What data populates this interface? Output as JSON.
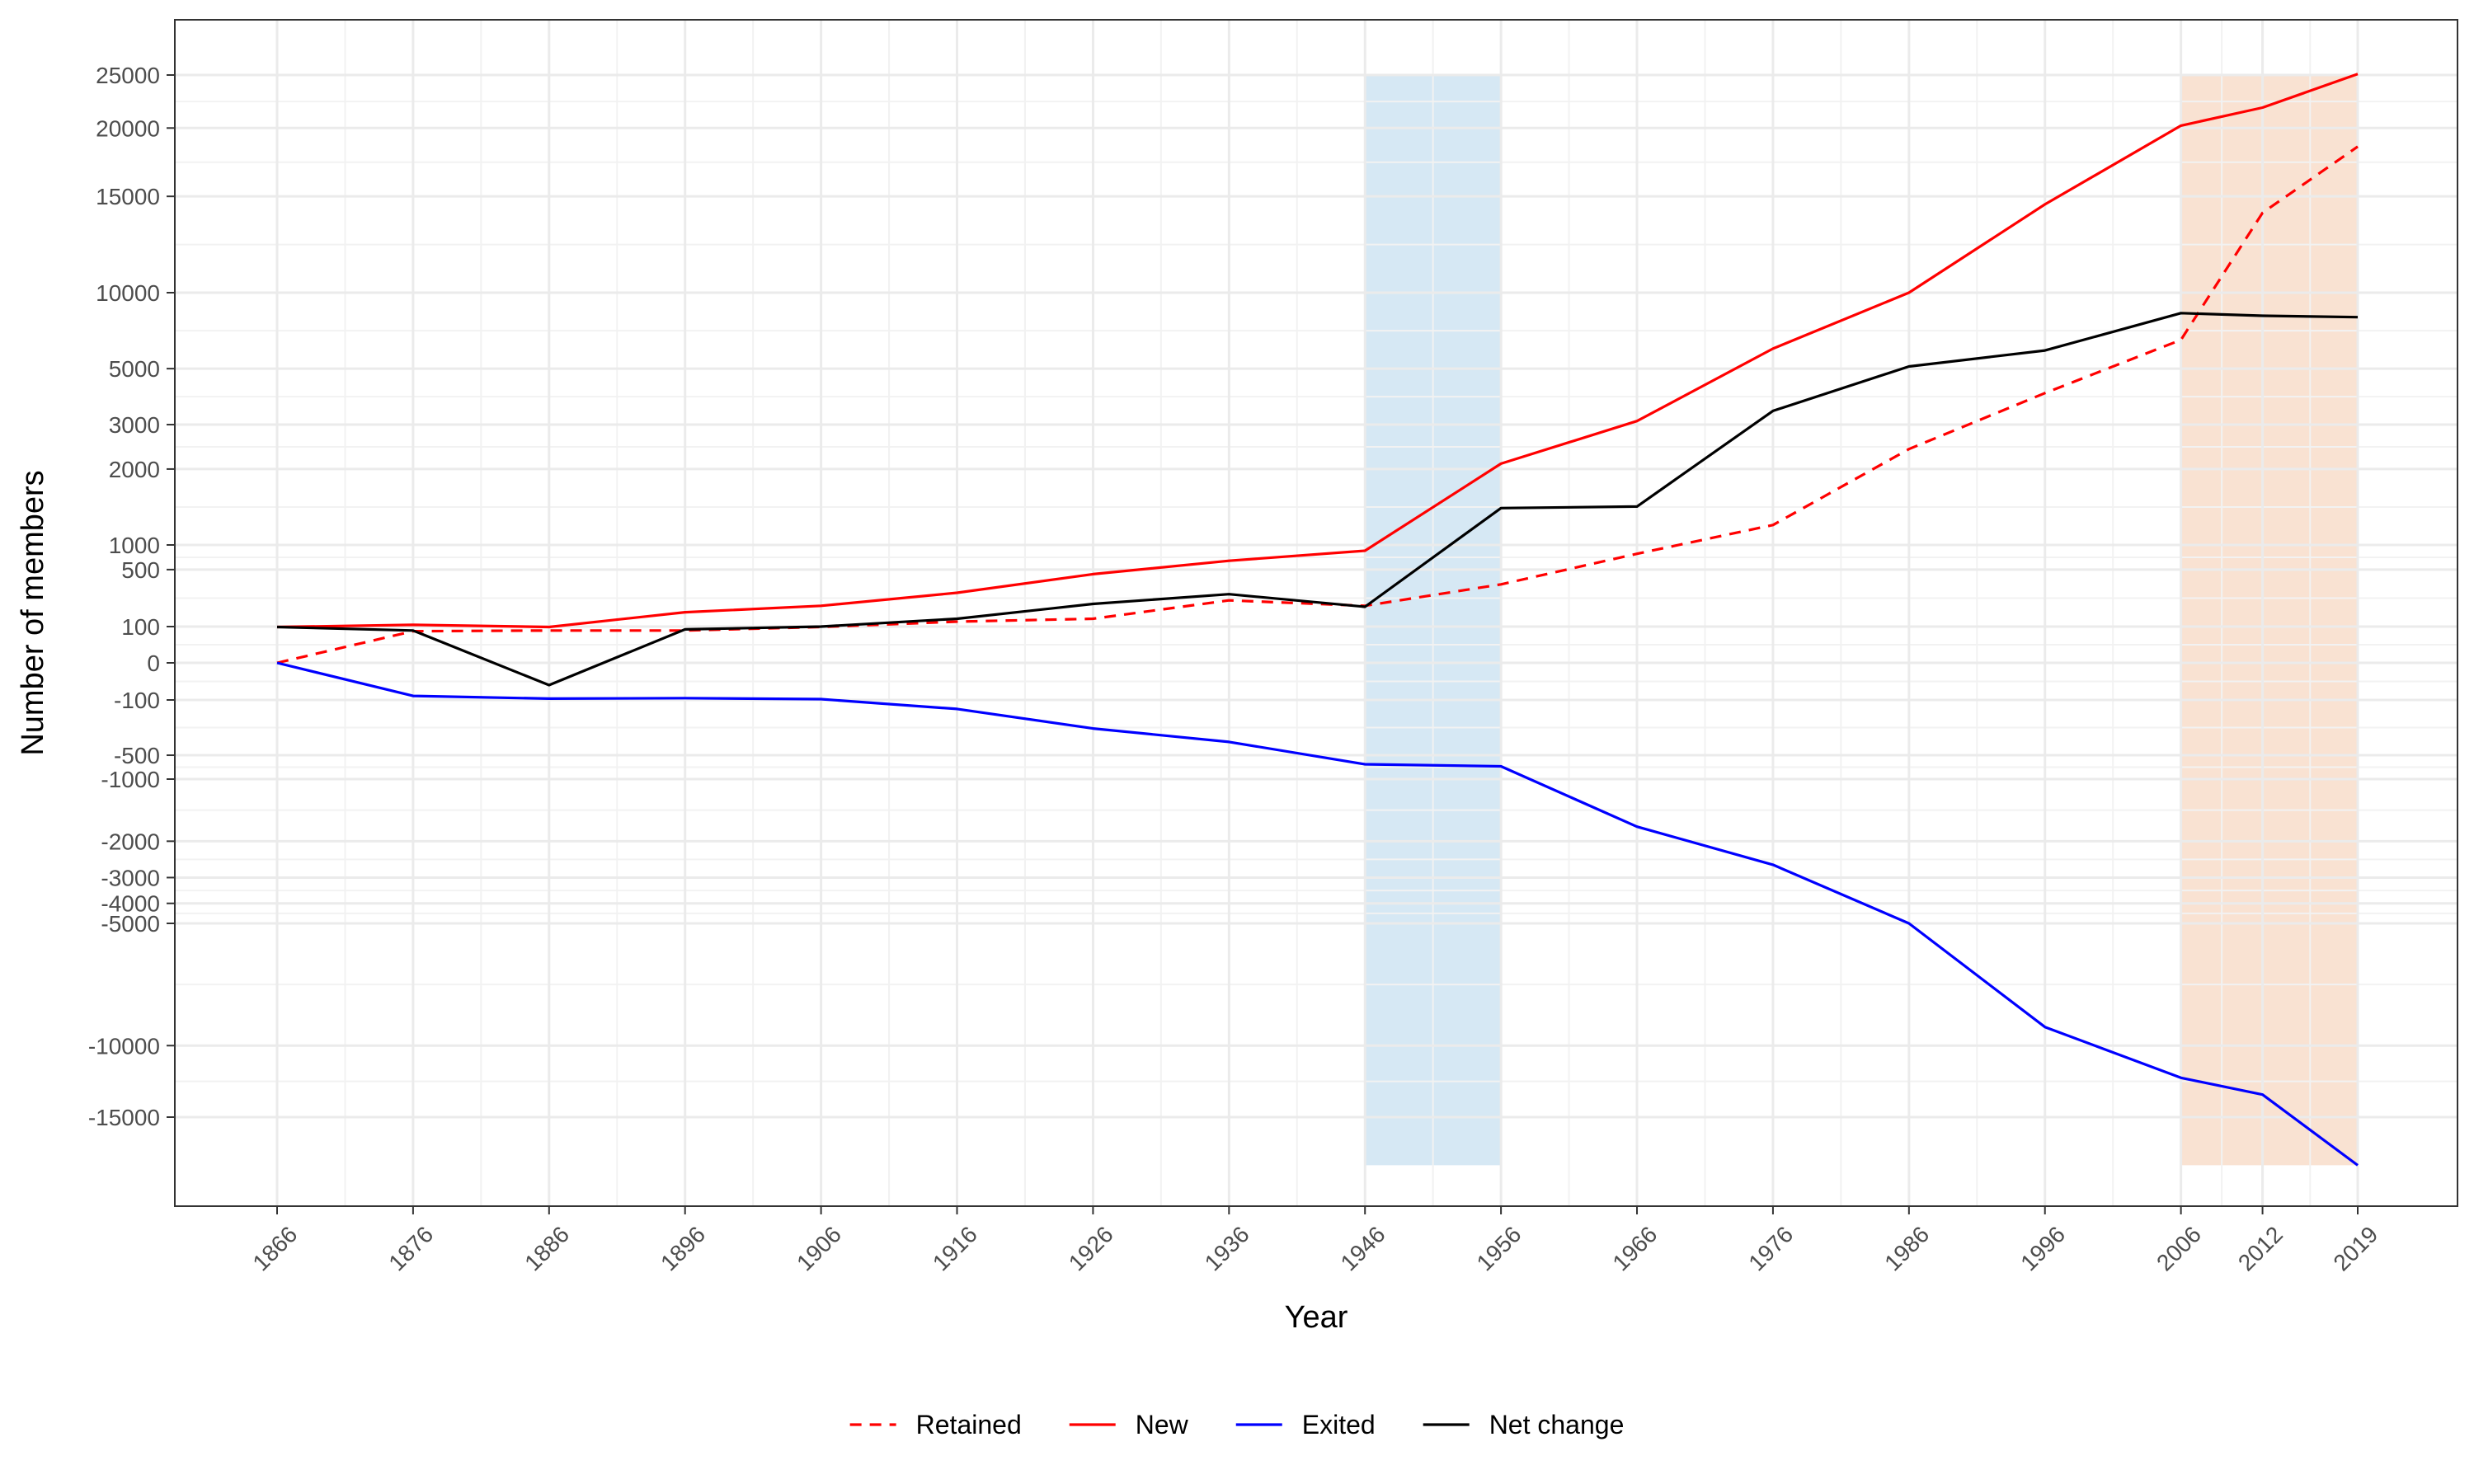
{
  "chart_data": {
    "type": "line",
    "title": "",
    "xlabel": "Year",
    "ylabel": "Number of members",
    "y_scale": "pseudo-log (signed, symmetric)",
    "x_ticks": [
      1866,
      1876,
      1886,
      1896,
      1906,
      1916,
      1926,
      1936,
      1946,
      1956,
      1966,
      1976,
      1986,
      1996,
      2006,
      2012,
      2019
    ],
    "y_ticks": [
      25000,
      20000,
      15000,
      10000,
      5000,
      3000,
      2000,
      1000,
      500,
      100,
      0,
      -100,
      -500,
      -1000,
      -2000,
      -3000,
      -4000,
      -5000,
      -10000,
      -15000
    ],
    "y_ticks_labels": [
      "25000",
      "20000",
      "15000",
      "10000",
      "5000",
      "3000",
      "2000",
      "1000",
      "500",
      "100",
      "0",
      "-100",
      "-500",
      "-1000",
      "-2000",
      "-3000",
      "-4000",
      "-5000",
      "-10000",
      "-15000"
    ],
    "x_ticks_labels": [
      "1866",
      "1876",
      "1886",
      "1896",
      "1906",
      "1916",
      "1926",
      "1936",
      "1946",
      "1956",
      "1966",
      "1976",
      "1986",
      "1996",
      "2006",
      "2012",
      "2019"
    ],
    "x": [
      1866,
      1876,
      1886,
      1896,
      1906,
      1916,
      1926,
      1936,
      1946,
      1956,
      1966,
      1976,
      1986,
      1996,
      2006,
      2012,
      2019
    ],
    "series": [
      {
        "name": "Retained",
        "color": "#ff0000",
        "dash": "dashed",
        "values": [
          0,
          55,
          60,
          60,
          95,
          115,
          125,
          210,
          180,
          330,
          780,
          1200,
          2400,
          4000,
          6500,
          14000,
          18500
        ]
      },
      {
        "name": "New",
        "color": "#ff0000",
        "dash": "solid",
        "values": [
          95,
          105,
          95,
          150,
          180,
          260,
          440,
          640,
          850,
          2100,
          3100,
          6000,
          10000,
          14500,
          20200,
          21800,
          25100
        ]
      },
      {
        "name": "Exited",
        "color": "#0000ff",
        "dash": "solid",
        "values": [
          0,
          -60,
          -85,
          -80,
          -90,
          -130,
          -230,
          -340,
          -650,
          -690,
          -1700,
          -2600,
          -5000,
          -9000,
          -12000,
          -13200,
          -17000
        ]
      },
      {
        "name": "Net change",
        "color": "#000000",
        "dash": "solid",
        "values": [
          95,
          60,
          -15,
          70,
          100,
          125,
          190,
          250,
          175,
          1400,
          1420,
          3400,
          5100,
          5900,
          8300,
          8100,
          8000
        ]
      }
    ],
    "shaded_regions": [
      {
        "x_start": 1946,
        "x_end": 1956,
        "color": "#d6e8f4"
      },
      {
        "x_start": 2006,
        "x_end": 2019,
        "color": "#f9e2d2"
      }
    ],
    "grid": true,
    "legend_position": "bottom"
  }
}
